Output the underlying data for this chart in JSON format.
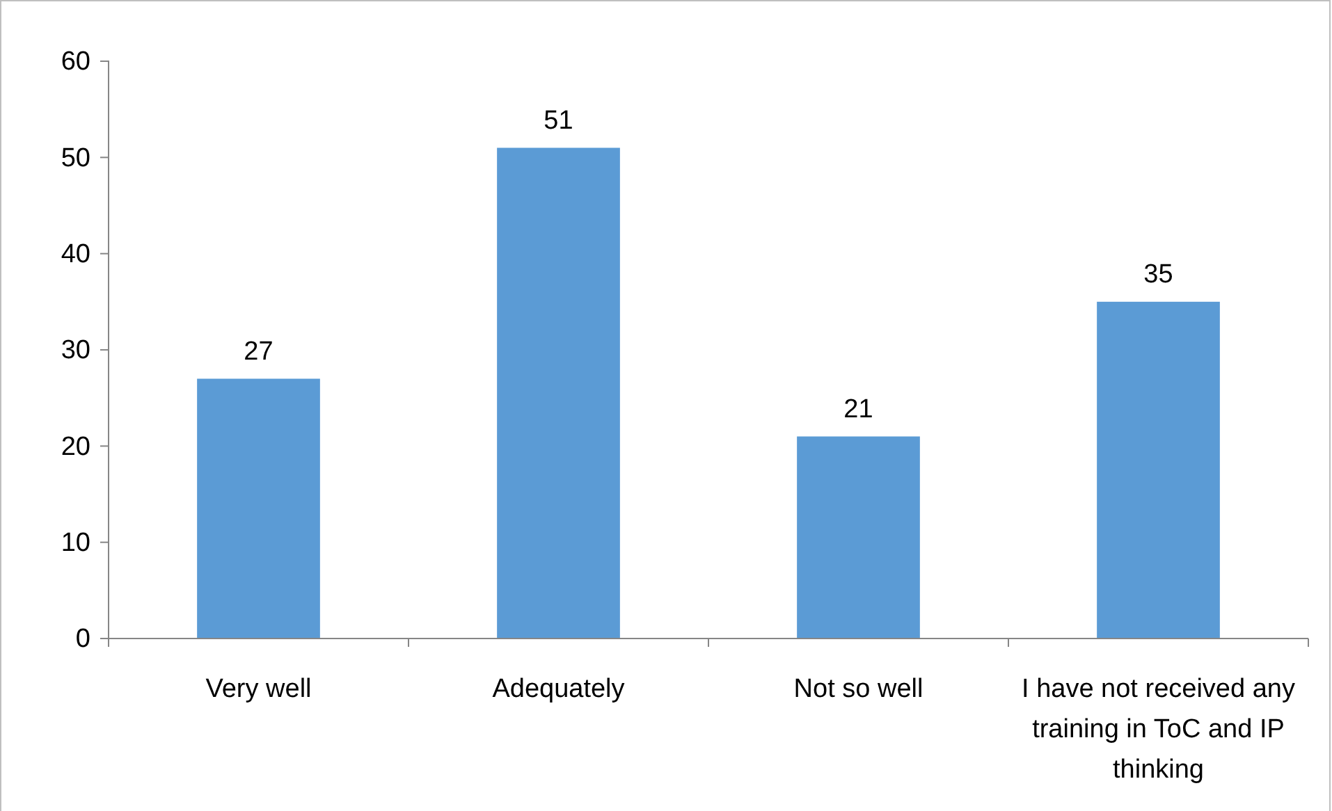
{
  "chart_data": {
    "type": "bar",
    "categories": [
      "Very well",
      "Adequately",
      "Not so well",
      "I have not received any training in ToC and IP thinking"
    ],
    "values": [
      27,
      51,
      21,
      35
    ],
    "color": "#5b9bd5",
    "ylim": [
      0,
      60
    ],
    "yticks": [
      0,
      10,
      20,
      30,
      40,
      50,
      60
    ],
    "grid": false,
    "data_labels": true
  }
}
